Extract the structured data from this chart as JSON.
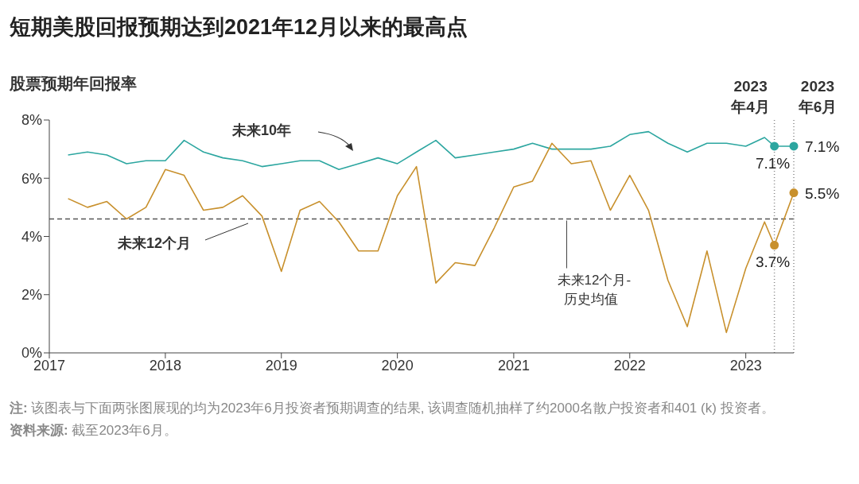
{
  "chart_data": {
    "type": "line",
    "title": "短期美股回报预期达到2021年12月以来的最高点",
    "ylabel": "股票预期年回报率",
    "x": [
      "2017-03",
      "2017-05",
      "2017-07",
      "2017-09",
      "2017-11",
      "2018-01",
      "2018-03",
      "2018-05",
      "2018-07",
      "2018-09",
      "2018-11",
      "2019-01",
      "2019-03",
      "2019-05",
      "2019-07",
      "2019-09",
      "2019-11",
      "2020-01",
      "2020-03",
      "2020-05",
      "2020-07",
      "2020-09",
      "2020-11",
      "2021-01",
      "2021-03",
      "2021-05",
      "2021-07",
      "2021-09",
      "2021-11",
      "2022-01",
      "2022-03",
      "2022-05",
      "2022-07",
      "2022-09",
      "2022-11",
      "2023-01",
      "2023-03",
      "2023-04",
      "2023-06"
    ],
    "series": [
      {
        "name": "未来10年",
        "color": "#2ca6a0",
        "values": [
          6.8,
          6.9,
          6.8,
          6.5,
          6.6,
          6.6,
          7.3,
          6.9,
          6.7,
          6.6,
          6.4,
          6.5,
          6.6,
          6.6,
          6.3,
          6.5,
          6.7,
          6.5,
          6.9,
          7.3,
          6.7,
          6.8,
          6.9,
          7.0,
          7.2,
          7.0,
          7.0,
          7.0,
          7.1,
          7.5,
          7.6,
          7.2,
          6.9,
          7.2,
          7.2,
          7.1,
          7.4,
          7.1,
          7.1
        ],
        "value_labels": [
          null,
          null,
          null,
          null,
          null,
          null,
          null,
          null,
          null,
          null,
          null,
          null,
          null,
          null,
          null,
          null,
          null,
          null,
          null,
          null,
          null,
          null,
          null,
          null,
          null,
          null,
          null,
          null,
          null,
          null,
          null,
          null,
          null,
          null,
          null,
          null,
          null,
          "7.1%",
          "7.1%"
        ]
      },
      {
        "name": "未来12个月",
        "color": "#c8902c",
        "values": [
          5.3,
          5.0,
          5.2,
          4.6,
          5.0,
          6.3,
          6.1,
          4.9,
          5.0,
          5.4,
          4.7,
          2.8,
          4.9,
          5.2,
          4.5,
          3.5,
          3.5,
          5.4,
          6.4,
          2.4,
          3.1,
          3.0,
          4.3,
          5.7,
          5.9,
          7.2,
          6.5,
          6.6,
          4.9,
          6.1,
          4.9,
          2.5,
          0.9,
          3.5,
          0.7,
          2.9,
          4.5,
          3.7,
          5.5
        ],
        "value_labels": [
          null,
          null,
          null,
          null,
          null,
          null,
          null,
          null,
          null,
          null,
          null,
          null,
          null,
          null,
          null,
          null,
          null,
          null,
          null,
          null,
          null,
          null,
          null,
          null,
          null,
          null,
          null,
          null,
          null,
          null,
          null,
          null,
          null,
          null,
          null,
          null,
          null,
          "3.7%",
          "5.5%"
        ]
      }
    ],
    "xlim": [
      "2017-01",
      "2023-06"
    ],
    "xticks": [
      "2017",
      "2018",
      "2019",
      "2020",
      "2021",
      "2022",
      "2023"
    ],
    "ylim": [
      0,
      8
    ],
    "yticks": [
      {
        "value": 0,
        "label": "0%"
      },
      {
        "value": 2,
        "label": "2%"
      },
      {
        "value": 4,
        "label": "4%"
      },
      {
        "value": 6,
        "label": "6%"
      },
      {
        "value": 8,
        "label": "8%"
      }
    ],
    "ref_lines": [
      {
        "axis": "y",
        "value": 4.6,
        "label": "未来12个月-历史均值",
        "color": "#555555",
        "line_style": "dashed"
      },
      {
        "axis": "x",
        "value": "2023-04",
        "label": "2023年4月",
        "color": "#888888",
        "line_style": "dotted"
      },
      {
        "axis": "x",
        "value": "2023-06",
        "label": "2023年6月",
        "color": "#888888",
        "line_style": "dotted"
      }
    ],
    "annotations": [
      "注: 该图表与下面两张图展现的均为2023年6月投资者预期调查的结果, 该调查随机抽样了约2000名散户投资者和401 (k) 投资者。",
      "资料来源: 截至2023年6月。"
    ]
  }
}
